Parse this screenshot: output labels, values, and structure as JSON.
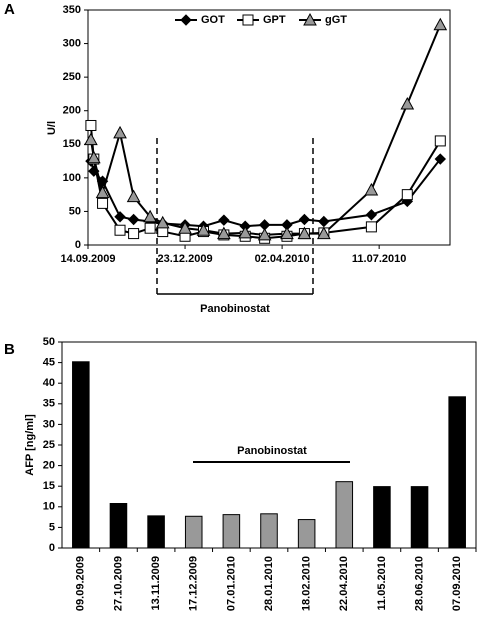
{
  "chart_data": [
    {
      "type": "line",
      "label": "A",
      "ylabel": "U/l",
      "annotation": "Panobinostat",
      "x": [
        "17.09.2009",
        "20.09.2009",
        "29.09.2009",
        "17.10.2009",
        "31.10.2009",
        "17.11.2009",
        "30.11.2009",
        "23.12.2009",
        "11.01.2010",
        "01.02.2010",
        "23.02.2010",
        "15.03.2010",
        "07.04.2010",
        "25.04.2010",
        "15.05.2010",
        "03.07.2010",
        "09.08.2010",
        "12.09.2010"
      ],
      "series": [
        {
          "name": "GOT",
          "color": "#000000",
          "marker": "diamond",
          "values": [
            125,
            110,
            95,
            42,
            38,
            35,
            32,
            30,
            28,
            37,
            28,
            30,
            30,
            38,
            35,
            45,
            65,
            128
          ]
        },
        {
          "name": "GPT",
          "color": "#ffffff",
          "marker": "square",
          "values": [
            178,
            128,
            62,
            22,
            17,
            25,
            20,
            13,
            20,
            15,
            13,
            10,
            13,
            17,
            18,
            27,
            75,
            155
          ]
        },
        {
          "name": "gGT",
          "color": "#999999",
          "marker": "triangle",
          "values": [
            157,
            130,
            78,
            167,
            72,
            42,
            33,
            25,
            22,
            17,
            18,
            15,
            17,
            17,
            17,
            82,
            210,
            328
          ]
        }
      ],
      "xlim": [
        "14.09.2009",
        "22.09.2010"
      ],
      "xticks": [
        "14.09.2009",
        "23.12.2009",
        "02.04.2010",
        "11.07.2010"
      ],
      "ylim": [
        0,
        350
      ],
      "yticks": [
        0,
        50,
        100,
        150,
        200,
        250,
        300,
        350
      ],
      "legend": "top",
      "grid": false
    },
    {
      "type": "bar",
      "label": "B",
      "ylabel": "AFP [ng/ml]",
      "annotation": "Panobinostat",
      "categories": [
        "09.09.2009",
        "27.10.2009",
        "13.11.2009",
        "17.12.2009",
        "07.01.2010",
        "28.01.2010",
        "18.02.2010",
        "22.04.2010",
        "11.05.2010",
        "28.06.2010",
        "07.09.2010"
      ],
      "values": [
        45.2,
        10.8,
        7.8,
        7.7,
        8.1,
        8.3,
        6.9,
        16.1,
        14.9,
        14.9,
        36.7
      ],
      "colors": [
        "#000000",
        "#000000",
        "#000000",
        "#999999",
        "#999999",
        "#999999",
        "#999999",
        "#999999",
        "#000000",
        "#000000",
        "#000000"
      ],
      "ylim": [
        0,
        50
      ],
      "yticks": [
        0,
        5,
        10,
        15,
        20,
        25,
        30,
        35,
        40,
        45,
        50
      ],
      "grid": false
    }
  ]
}
